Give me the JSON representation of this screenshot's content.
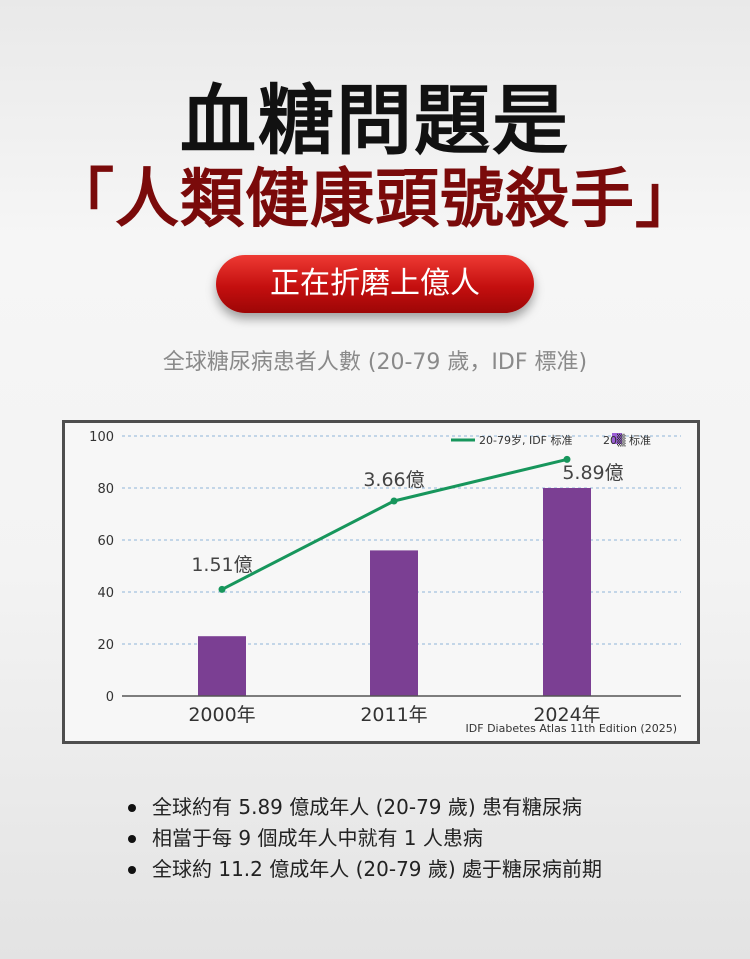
{
  "headline": {
    "line1": "血糖問題是",
    "line2": "「人類健康頭號殺手」"
  },
  "pill_label": "正在折磨上億人",
  "subtitle": "全球糖尿病患者人數 (20-79 歲，IDF 標准)",
  "chart_data": {
    "type": "bar",
    "categories": [
      "2000年",
      "2011年",
      "2024年"
    ],
    "values": [
      23,
      56,
      80
    ],
    "line_series": {
      "name": "20-79岁, IDF 标准",
      "values": [
        41,
        75,
        91
      ],
      "labels": [
        "1.51億",
        "3.66億",
        "5.89億"
      ]
    },
    "bar_legend_label": "20▒ 标准",
    "ylim": [
      0,
      100
    ],
    "yticks": [
      0,
      20,
      40,
      60,
      80,
      100
    ],
    "grid": true,
    "legend_position": "top-right",
    "source": "IDF Diabetes Atlas 11th Edition (2025)",
    "colors": {
      "bar": "#7b3f93",
      "line": "#17965c",
      "grid": "#8fb4d8"
    }
  },
  "bullets": [
    "全球約有 5.89 億成年人 (20-79 歲) 患有糖尿病",
    "相當于每 9 個成年人中就有 1 人患病",
    "全球約 11.2 億成年人 (20-79 歲) 處于糖尿病前期"
  ]
}
